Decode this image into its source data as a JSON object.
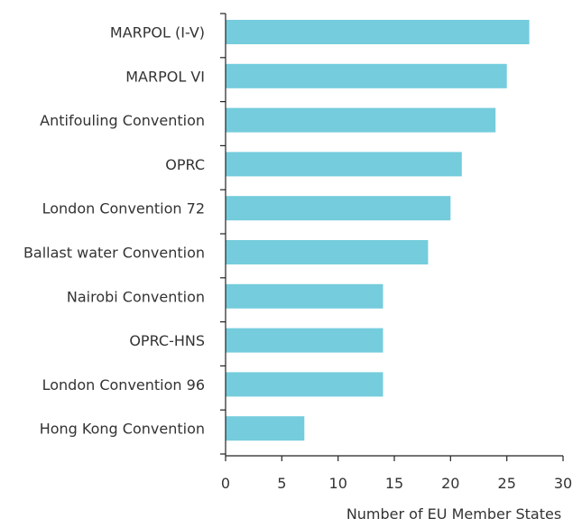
{
  "chart_data": {
    "type": "bar",
    "orientation": "horizontal",
    "title": "",
    "xlabel": "Number of EU Member States",
    "ylabel": "",
    "categories": [
      "MARPOL (I-V)",
      "MARPOL VI",
      "Antifouling Convention",
      "OPRC",
      "London Convention 72",
      "Ballast water Convention",
      "Nairobi Convention",
      "OPRC-HNS",
      "London Convention 96",
      "Hong Kong Convention"
    ],
    "values": [
      27,
      25,
      24,
      21,
      20,
      18,
      14,
      14,
      14,
      7
    ],
    "xlim": [
      0,
      30
    ],
    "xticks": [
      "0",
      "5",
      "10",
      "15",
      "20",
      "25",
      "30"
    ],
    "grid": false,
    "bar_color": "#74CCDC",
    "axis_color": "#222222"
  }
}
